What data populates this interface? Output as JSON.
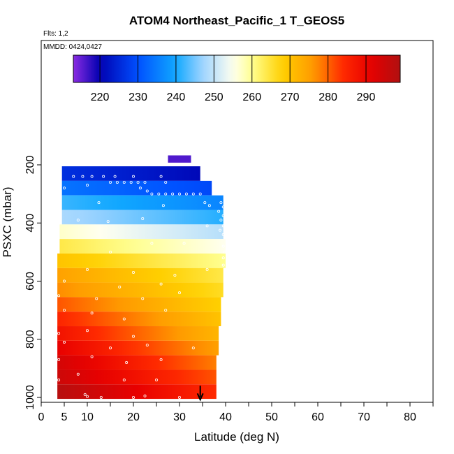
{
  "chart_data": {
    "type": "heatmap",
    "title": "ATOM4 Northeast_Pacific_1 T_GEOS5",
    "flights_note": "Flts: 1,2",
    "date_note": "MMDD: 0424,0427",
    "xlabel": "Latitude (deg N)",
    "ylabel": "PSXC (mbar)",
    "xlim": [
      0,
      85
    ],
    "ylim": [
      1010,
      70
    ],
    "y_reversed": true,
    "x_ticks": [
      0,
      5,
      10,
      20,
      30,
      40,
      50,
      60,
      70,
      80
    ],
    "y_ticks": [
      200,
      400,
      600,
      800,
      1000
    ],
    "colorbar": {
      "range": [
        213,
        299
      ],
      "ticks": [
        220,
        230,
        240,
        250,
        260,
        270,
        280,
        290
      ],
      "stops": [
        {
          "v": 213,
          "color": "#8a2be2"
        },
        {
          "v": 220,
          "color": "#0000b0"
        },
        {
          "v": 230,
          "color": "#0050ff"
        },
        {
          "v": 240,
          "color": "#10a8ff"
        },
        {
          "v": 247,
          "color": "#9ed4ff"
        },
        {
          "v": 255,
          "color": "#fffff0"
        },
        {
          "v": 260,
          "color": "#ffff90"
        },
        {
          "v": 268,
          "color": "#ffd000"
        },
        {
          "v": 276,
          "color": "#ff9a00"
        },
        {
          "v": 284,
          "color": "#ff2a00"
        },
        {
          "v": 291,
          "color": "#e80000"
        },
        {
          "v": 299,
          "color": "#b01010"
        }
      ]
    },
    "layers": [
      {
        "p": 180,
        "dp": 25,
        "lat_min": 27.5,
        "lat_max": 32.5,
        "t_start": 216,
        "t_end": 216
      },
      {
        "p": 230,
        "dp": 50,
        "lat_min": 4.5,
        "lat_max": 34.5,
        "t_start": 226,
        "t_end": 221
      },
      {
        "p": 280,
        "dp": 50,
        "lat_min": 4.5,
        "lat_max": 37.0,
        "t_start": 234,
        "t_end": 229
      },
      {
        "p": 330,
        "dp": 50,
        "lat_min": 4.5,
        "lat_max": 39.5,
        "t_start": 242,
        "t_end": 236
      },
      {
        "p": 380,
        "dp": 50,
        "lat_min": 4.5,
        "lat_max": 39.5,
        "t_start": 248,
        "t_end": 241
      },
      {
        "p": 430,
        "dp": 50,
        "lat_min": 4.0,
        "lat_max": 39.5,
        "t_start": 257,
        "t_end": 249
      },
      {
        "p": 480,
        "dp": 50,
        "lat_min": 4.0,
        "lat_max": 40.0,
        "t_start": 264,
        "t_end": 255
      },
      {
        "p": 530,
        "dp": 50,
        "lat_min": 3.5,
        "lat_max": 40.0,
        "t_start": 270,
        "t_end": 260
      },
      {
        "p": 580,
        "dp": 50,
        "lat_min": 3.5,
        "lat_max": 39.5,
        "t_start": 275,
        "t_end": 264
      },
      {
        "p": 630,
        "dp": 50,
        "lat_min": 3.5,
        "lat_max": 39.5,
        "t_start": 277,
        "t_end": 266
      },
      {
        "p": 680,
        "dp": 50,
        "lat_min": 3.5,
        "lat_max": 39.0,
        "t_start": 281,
        "t_end": 268
      },
      {
        "p": 730,
        "dp": 50,
        "lat_min": 3.5,
        "lat_max": 39.0,
        "t_start": 285,
        "t_end": 270
      },
      {
        "p": 780,
        "dp": 50,
        "lat_min": 3.5,
        "lat_max": 38.5,
        "t_start": 288,
        "t_end": 272
      },
      {
        "p": 830,
        "dp": 50,
        "lat_min": 3.5,
        "lat_max": 38.5,
        "t_start": 291,
        "t_end": 275
      },
      {
        "p": 880,
        "dp": 50,
        "lat_min": 3.5,
        "lat_max": 38.0,
        "t_start": 294,
        "t_end": 278
      },
      {
        "p": 930,
        "dp": 50,
        "lat_min": 3.5,
        "lat_max": 38.0,
        "t_start": 295,
        "t_end": 281
      },
      {
        "p": 980,
        "dp": 50,
        "lat_min": 3.5,
        "lat_max": 38.0,
        "t_start": 298,
        "t_end": 284
      }
    ],
    "obs_points": [
      {
        "lat": 28.5,
        "p": 200
      },
      {
        "lat": 29.5,
        "p": 200
      },
      {
        "lat": 30.5,
        "p": 200
      },
      {
        "lat": 31.5,
        "p": 200
      },
      {
        "lat": 32.2,
        "p": 200
      },
      {
        "lat": 7,
        "p": 240
      },
      {
        "lat": 9,
        "p": 240
      },
      {
        "lat": 11,
        "p": 240
      },
      {
        "lat": 13.5,
        "p": 240
      },
      {
        "lat": 16,
        "p": 240
      },
      {
        "lat": 20,
        "p": 240
      },
      {
        "lat": 26,
        "p": 240
      },
      {
        "lat": 15,
        "p": 260
      },
      {
        "lat": 16.5,
        "p": 260
      },
      {
        "lat": 18,
        "p": 260
      },
      {
        "lat": 19.5,
        "p": 260
      },
      {
        "lat": 21,
        "p": 260
      },
      {
        "lat": 22.5,
        "p": 260
      },
      {
        "lat": 27,
        "p": 260
      },
      {
        "lat": 5,
        "p": 280
      },
      {
        "lat": 10,
        "p": 270
      },
      {
        "lat": 21.5,
        "p": 280
      },
      {
        "lat": 23,
        "p": 290
      },
      {
        "lat": 24,
        "p": 300
      },
      {
        "lat": 25.5,
        "p": 300
      },
      {
        "lat": 27,
        "p": 300
      },
      {
        "lat": 28.5,
        "p": 300
      },
      {
        "lat": 30,
        "p": 300
      },
      {
        "lat": 31.5,
        "p": 300
      },
      {
        "lat": 33,
        "p": 300
      },
      {
        "lat": 34.5,
        "p": 300
      },
      {
        "lat": 12.5,
        "p": 330
      },
      {
        "lat": 26.5,
        "p": 340
      },
      {
        "lat": 35.5,
        "p": 330
      },
      {
        "lat": 36.5,
        "p": 340
      },
      {
        "lat": 39,
        "p": 330
      },
      {
        "lat": 39.5,
        "p": 345
      },
      {
        "lat": 38.5,
        "p": 360
      },
      {
        "lat": 39.5,
        "p": 375
      },
      {
        "lat": 39,
        "p": 390
      },
      {
        "lat": 39.5,
        "p": 410
      },
      {
        "lat": 38.8,
        "p": 425
      },
      {
        "lat": 39.5,
        "p": 440
      },
      {
        "lat": 8,
        "p": 390
      },
      {
        "lat": 14.5,
        "p": 395
      },
      {
        "lat": 22,
        "p": 385
      },
      {
        "lat": 36,
        "p": 410
      },
      {
        "lat": 39.5,
        "p": 480
      },
      {
        "lat": 39.8,
        "p": 500
      },
      {
        "lat": 39.5,
        "p": 520
      },
      {
        "lat": 39.5,
        "p": 545
      },
      {
        "lat": 24,
        "p": 470
      },
      {
        "lat": 31,
        "p": 470
      },
      {
        "lat": 15,
        "p": 500
      },
      {
        "lat": 10,
        "p": 560
      },
      {
        "lat": 20,
        "p": 570
      },
      {
        "lat": 29,
        "p": 580
      },
      {
        "lat": 36,
        "p": 560
      },
      {
        "lat": 5,
        "p": 600
      },
      {
        "lat": 17,
        "p": 620
      },
      {
        "lat": 26,
        "p": 610
      },
      {
        "lat": 3.8,
        "p": 650
      },
      {
        "lat": 12,
        "p": 660
      },
      {
        "lat": 22,
        "p": 660
      },
      {
        "lat": 30,
        "p": 640
      },
      {
        "lat": 5,
        "p": 700
      },
      {
        "lat": 11,
        "p": 710
      },
      {
        "lat": 18,
        "p": 730
      },
      {
        "lat": 27,
        "p": 700
      },
      {
        "lat": 10,
        "p": 770
      },
      {
        "lat": 20,
        "p": 790
      },
      {
        "lat": 3.8,
        "p": 780
      },
      {
        "lat": 5,
        "p": 810
      },
      {
        "lat": 15,
        "p": 830
      },
      {
        "lat": 23,
        "p": 820
      },
      {
        "lat": 33,
        "p": 830
      },
      {
        "lat": 3.8,
        "p": 870
      },
      {
        "lat": 11,
        "p": 860
      },
      {
        "lat": 18.5,
        "p": 880
      },
      {
        "lat": 26,
        "p": 870
      },
      {
        "lat": 8,
        "p": 920
      },
      {
        "lat": 3.8,
        "p": 940
      },
      {
        "lat": 18,
        "p": 940
      },
      {
        "lat": 25,
        "p": 940
      },
      {
        "lat": 9.5,
        "p": 990
      },
      {
        "lat": 10,
        "p": 997
      },
      {
        "lat": 13,
        "p": 1000
      },
      {
        "lat": 20,
        "p": 1000
      },
      {
        "lat": 22.5,
        "p": 995
      },
      {
        "lat": 30,
        "p": 1000
      }
    ],
    "arrow_marker": {
      "lat": 34.5,
      "p_top": 960,
      "p_bottom": 1008
    }
  }
}
